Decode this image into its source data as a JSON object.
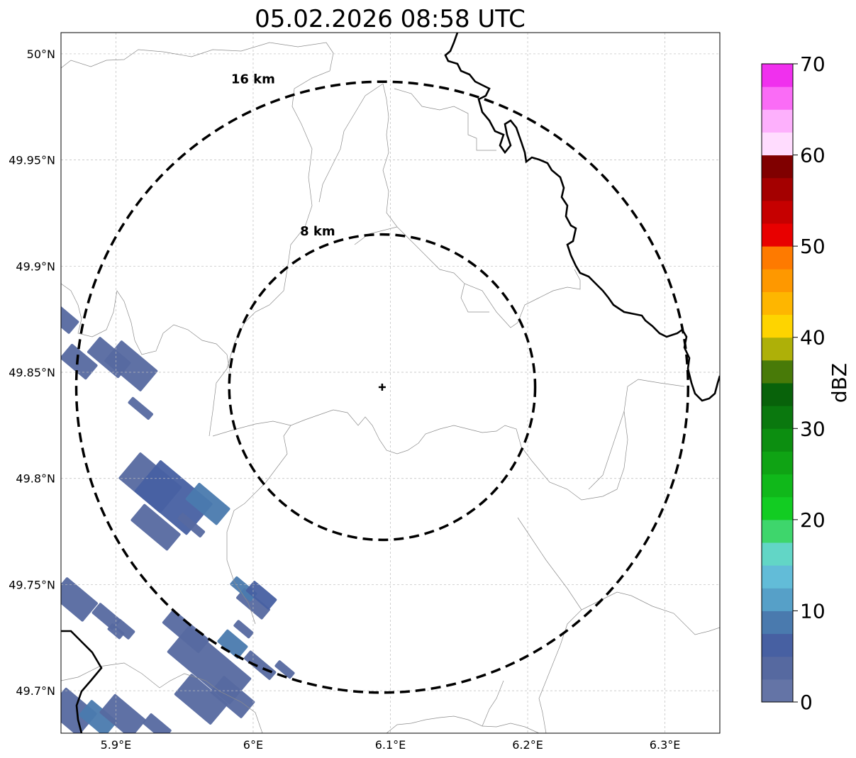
{
  "title": "05.02.2026 08:58 UTC",
  "map": {
    "lon_range": [
      5.86,
      6.34
    ],
    "lat_range": [
      49.68,
      50.01
    ],
    "x_ticks": [
      {
        "value": 5.9,
        "label": "5.9°E"
      },
      {
        "value": 6.0,
        "label": "6°E"
      },
      {
        "value": 6.1,
        "label": "6.1°E"
      },
      {
        "value": 6.2,
        "label": "6.2°E"
      },
      {
        "value": 6.3,
        "label": "6.3°E"
      }
    ],
    "y_ticks": [
      {
        "value": 49.7,
        "label": "49.7°N"
      },
      {
        "value": 49.75,
        "label": "49.75°N"
      },
      {
        "value": 49.8,
        "label": "49.8°N"
      },
      {
        "value": 49.85,
        "label": "49.85°N"
      },
      {
        "value": 49.9,
        "label": "49.9°N"
      },
      {
        "value": 49.95,
        "label": "49.95°N"
      },
      {
        "value": 50.0,
        "label": "50°N"
      }
    ],
    "radar_site": {
      "lon": 6.094,
      "lat": 49.843
    },
    "rings": [
      {
        "radius_km": 8,
        "label": "8 km"
      },
      {
        "radius_km": 16,
        "label": "16 km"
      }
    ],
    "grid": true
  },
  "colorbar": {
    "title": "dBZ",
    "min": 0,
    "max": 70,
    "ticks": [
      {
        "value": 0,
        "label": "0"
      },
      {
        "value": 10,
        "label": "10"
      },
      {
        "value": 20,
        "label": "20"
      },
      {
        "value": 30,
        "label": "30"
      },
      {
        "value": 40,
        "label": "40"
      },
      {
        "value": 50,
        "label": "50"
      },
      {
        "value": 60,
        "label": "60"
      },
      {
        "value": 70,
        "label": "70"
      }
    ],
    "colors": [
      "#6474a6",
      "#5669a0",
      "#4760a2",
      "#4a7aae",
      "#56a0c8",
      "#62bcd8",
      "#62d6c6",
      "#3ed66c",
      "#12cc22",
      "#10b81a",
      "#0fa314",
      "#0c8e10",
      "#0a780e",
      "#08620a",
      "#487a08",
      "#aeb008",
      "#fed400",
      "#feb600",
      "#fe9800",
      "#fe7a00",
      "#e80000",
      "#c60000",
      "#a40000",
      "#800000",
      "#ffdcfe",
      "#fdb0fc",
      "#fa6cf6",
      "#f030ee"
    ]
  },
  "echoes": [
    {
      "lon": 5.862,
      "lat": 49.875,
      "w": 0.012,
      "l": 0.02,
      "angle": -40,
      "dbz": 3
    },
    {
      "lon": 5.873,
      "lat": 49.855,
      "w": 0.014,
      "l": 0.025,
      "angle": -40,
      "dbz": 3
    },
    {
      "lon": 5.895,
      "lat": 49.857,
      "w": 0.015,
      "l": 0.03,
      "angle": -40,
      "dbz": 3
    },
    {
      "lon": 5.911,
      "lat": 49.853,
      "w": 0.02,
      "l": 0.035,
      "angle": -40,
      "dbz": 4
    },
    {
      "lon": 5.918,
      "lat": 49.833,
      "w": 0.006,
      "l": 0.02,
      "angle": -40,
      "dbz": 3
    },
    {
      "lon": 5.925,
      "lat": 49.798,
      "w": 0.025,
      "l": 0.04,
      "angle": -40,
      "dbz": 4
    },
    {
      "lon": 5.942,
      "lat": 49.791,
      "w": 0.03,
      "l": 0.05,
      "angle": -40,
      "dbz": 5
    },
    {
      "lon": 5.967,
      "lat": 49.788,
      "w": 0.016,
      "l": 0.03,
      "angle": -40,
      "dbz": 9
    },
    {
      "lon": 5.929,
      "lat": 49.777,
      "w": 0.016,
      "l": 0.035,
      "angle": -40,
      "dbz": 4
    },
    {
      "lon": 5.955,
      "lat": 49.778,
      "w": 0.006,
      "l": 0.022,
      "angle": -40,
      "dbz": 3
    },
    {
      "lon": 5.87,
      "lat": 49.743,
      "w": 0.018,
      "l": 0.03,
      "angle": -40,
      "dbz": 4
    },
    {
      "lon": 5.893,
      "lat": 49.735,
      "w": 0.01,
      "l": 0.02,
      "angle": -40,
      "dbz": 3
    },
    {
      "lon": 5.906,
      "lat": 49.729,
      "w": 0.008,
      "l": 0.015,
      "angle": -40,
      "dbz": 3
    },
    {
      "lon": 5.951,
      "lat": 49.728,
      "w": 0.013,
      "l": 0.035,
      "angle": -40,
      "dbz": 3
    },
    {
      "lon": 5.968,
      "lat": 49.712,
      "w": 0.025,
      "l": 0.06,
      "angle": -40,
      "dbz": 4
    },
    {
      "lon": 5.985,
      "lat": 49.722,
      "w": 0.012,
      "l": 0.02,
      "angle": -40,
      "dbz": 9
    },
    {
      "lon": 5.962,
      "lat": 49.696,
      "w": 0.02,
      "l": 0.035,
      "angle": -40,
      "dbz": 4
    },
    {
      "lon": 5.985,
      "lat": 49.697,
      "w": 0.016,
      "l": 0.03,
      "angle": -40,
      "dbz": 3
    },
    {
      "lon": 6.005,
      "lat": 49.712,
      "w": 0.008,
      "l": 0.025,
      "angle": -40,
      "dbz": 3
    },
    {
      "lon": 6.023,
      "lat": 49.71,
      "w": 0.006,
      "l": 0.015,
      "angle": -40,
      "dbz": 4
    },
    {
      "lon": 6.0,
      "lat": 49.741,
      "w": 0.01,
      "l": 0.025,
      "angle": -40,
      "dbz": 4
    },
    {
      "lon": 5.993,
      "lat": 49.748,
      "w": 0.008,
      "l": 0.02,
      "angle": -40,
      "dbz": 9
    },
    {
      "lon": 6.006,
      "lat": 49.745,
      "w": 0.01,
      "l": 0.022,
      "angle": -40,
      "dbz": 5
    },
    {
      "lon": 5.993,
      "lat": 49.729,
      "w": 0.006,
      "l": 0.015,
      "angle": -40,
      "dbz": 3
    },
    {
      "lon": 5.9,
      "lat": 49.728,
      "w": 0.006,
      "l": 0.012,
      "angle": -40,
      "dbz": 3
    },
    {
      "lon": 5.868,
      "lat": 49.69,
      "w": 0.022,
      "l": 0.03,
      "angle": -40,
      "dbz": 4
    },
    {
      "lon": 5.887,
      "lat": 49.687,
      "w": 0.015,
      "l": 0.025,
      "angle": -40,
      "dbz": 9
    },
    {
      "lon": 5.905,
      "lat": 49.688,
      "w": 0.018,
      "l": 0.03,
      "angle": -40,
      "dbz": 3
    },
    {
      "lon": 5.93,
      "lat": 49.683,
      "w": 0.01,
      "l": 0.02,
      "angle": -40,
      "dbz": 3
    }
  ]
}
